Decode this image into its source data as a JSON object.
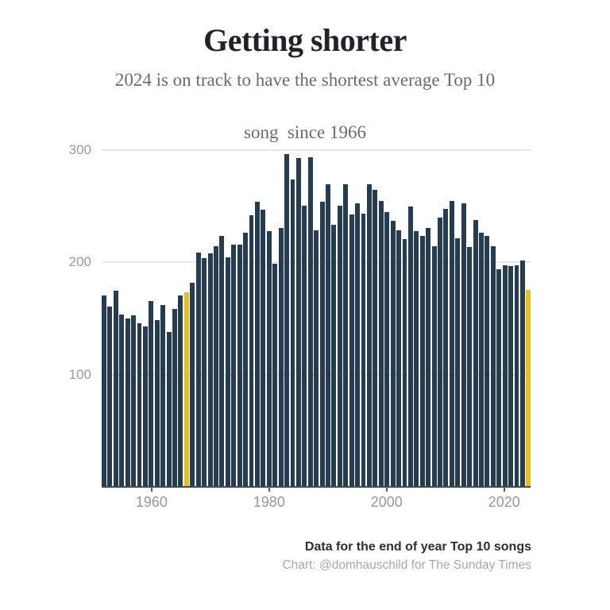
{
  "header": {
    "title": "Getting shorter",
    "subtitle_line1": "2024 is on track to have the shortest average Top 10",
    "subtitle_line2": "song  since 1966"
  },
  "chart_data": {
    "type": "bar",
    "title": "Getting shorter",
    "subtitle": "2024 is on track to have the shortest average Top 10 song since 1966",
    "years": [
      1952,
      1953,
      1954,
      1955,
      1956,
      1957,
      1958,
      1959,
      1960,
      1961,
      1962,
      1963,
      1964,
      1965,
      1966,
      1967,
      1968,
      1969,
      1970,
      1971,
      1972,
      1973,
      1974,
      1975,
      1976,
      1977,
      1978,
      1979,
      1980,
      1981,
      1982,
      1983,
      1984,
      1985,
      1986,
      1987,
      1988,
      1989,
      1990,
      1991,
      1992,
      1993,
      1994,
      1995,
      1996,
      1997,
      1998,
      1999,
      2000,
      2001,
      2002,
      2003,
      2004,
      2005,
      2006,
      2007,
      2008,
      2009,
      2010,
      2011,
      2012,
      2013,
      2014,
      2015,
      2016,
      2017,
      2018,
      2019,
      2020,
      2021,
      2022,
      2023,
      2024
    ],
    "values": [
      170,
      160,
      174,
      153,
      149,
      152,
      145,
      142,
      165,
      148,
      161,
      137,
      158,
      170,
      173,
      181,
      208,
      203,
      207,
      214,
      223,
      204,
      215,
      215,
      226,
      241,
      253,
      246,
      227,
      198,
      230,
      296,
      273,
      292,
      250,
      293,
      228,
      253,
      269,
      233,
      250,
      269,
      242,
      252,
      243,
      269,
      264,
      254,
      244,
      236,
      228,
      220,
      249,
      227,
      223,
      230,
      214,
      239,
      247,
      254,
      221,
      252,
      213,
      237,
      226,
      223,
      214,
      193,
      197,
      196,
      197,
      201,
      175
    ],
    "ylim": [
      0,
      300
    ],
    "y_ticks": [
      100,
      200,
      300
    ],
    "x_ticks": [
      1960,
      1980,
      2000,
      2020
    ],
    "grid": "horizontal",
    "legend": "none",
    "bar_color": "#263C52",
    "highlight_color": "#E3C01F",
    "highlight_years": [
      1966,
      2024
    ]
  },
  "footer": {
    "note": "Data for the end of year Top 10 songs",
    "credit": "Chart: @domhauschild for The Sunday Times"
  }
}
